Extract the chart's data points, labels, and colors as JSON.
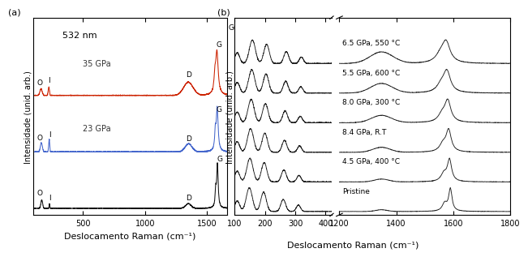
{
  "panel_a": {
    "xlabel": "Deslocamento Raman (cm⁻¹)",
    "ylabel": "Intensidade (unid. arb.)",
    "label": "(a)",
    "wavelength": "532 nm",
    "xlim": [
      100,
      1650
    ],
    "xticks": [
      500,
      1000,
      1500
    ]
  },
  "panel_b": {
    "low_xlim": [
      100,
      420
    ],
    "high_xlim": [
      1200,
      1800
    ],
    "low_xticks": [
      100,
      200,
      300,
      400
    ],
    "high_xticks": [
      1200,
      1400,
      1600,
      1800
    ],
    "xlabel": "Deslocamento Raman (cm⁻¹)",
    "ylabel": "Intensidade (unid. arb.)",
    "label": "(b)",
    "spectra_labels": [
      "6.5 GPa, 550 °C",
      "5.5 GPa, 600 °C",
      "8.0 GPa, 300 °C",
      "8.4 GPa, R.T",
      "4.5 GPa, 400 °C",
      "Pristine"
    ]
  },
  "colors": {
    "pristine_a": "#111111",
    "23gpa": "#4466cc",
    "35gpa": "#cc2200",
    "panel_b": "#222222",
    "bg": "#ffffff"
  },
  "font_size": 7,
  "label_fontsize": 8
}
